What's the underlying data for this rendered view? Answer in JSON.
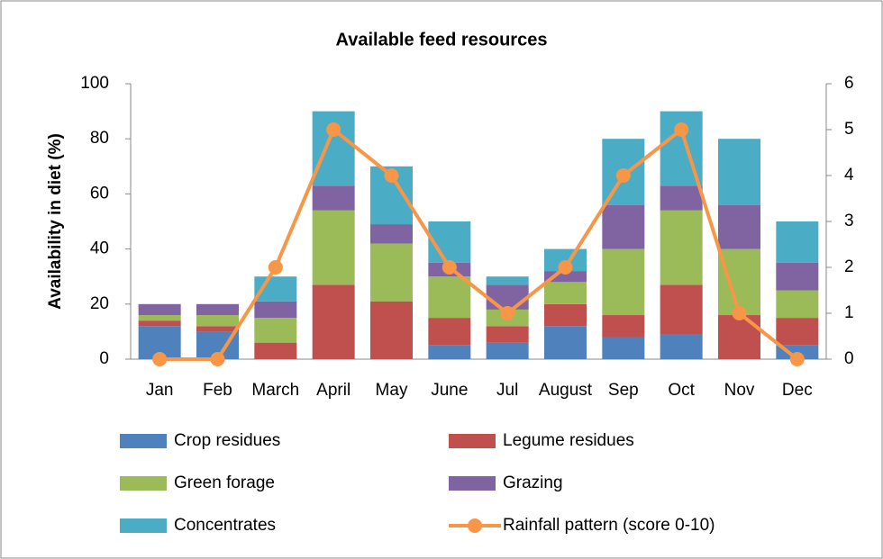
{
  "chart_data": {
    "type": "bar",
    "title": "Available feed resources",
    "y_label": "Availability in diet (%)",
    "categories": [
      "Jan",
      "Feb",
      "March",
      "April",
      "May",
      "June",
      "Jul",
      "August",
      "Sep",
      "Oct",
      "Nov",
      "Dec"
    ],
    "series": [
      {
        "name": "Crop residues",
        "color": "#4f81bd",
        "values": [
          12,
          10,
          0,
          0,
          0,
          5,
          6,
          12,
          8,
          9,
          0,
          5
        ]
      },
      {
        "name": "Legume residues",
        "color": "#c0504d",
        "values": [
          2,
          2,
          6,
          27,
          21,
          10,
          6,
          8,
          8,
          18,
          16,
          10
        ]
      },
      {
        "name": "Green forage",
        "color": "#9bbb59",
        "values": [
          2,
          4,
          9,
          27,
          21,
          15,
          6,
          8,
          24,
          27,
          24,
          10
        ]
      },
      {
        "name": "Grazing",
        "color": "#8064a2",
        "values": [
          4,
          4,
          6,
          9,
          7,
          5,
          9,
          4,
          16,
          9,
          16,
          10
        ]
      },
      {
        "name": "Concentrates",
        "color": "#4bacc6",
        "values": [
          0,
          0,
          9,
          27,
          21,
          15,
          3,
          8,
          24,
          27,
          24,
          15
        ]
      },
      {
        "name": "Rainfall pattern (score 0-10)",
        "color": "#f79646",
        "type": "line",
        "axis": "y2",
        "values": [
          0,
          0,
          2,
          5,
          4,
          2,
          1,
          2,
          4,
          5,
          1,
          0
        ]
      }
    ],
    "ylim": [
      0,
      100
    ],
    "yticks": [
      0,
      20,
      40,
      60,
      80,
      100
    ],
    "y2lim": [
      0,
      6
    ],
    "y2ticks": [
      0,
      1,
      2,
      3,
      4,
      5,
      6
    ],
    "stacked": true,
    "legend": "bottom"
  }
}
